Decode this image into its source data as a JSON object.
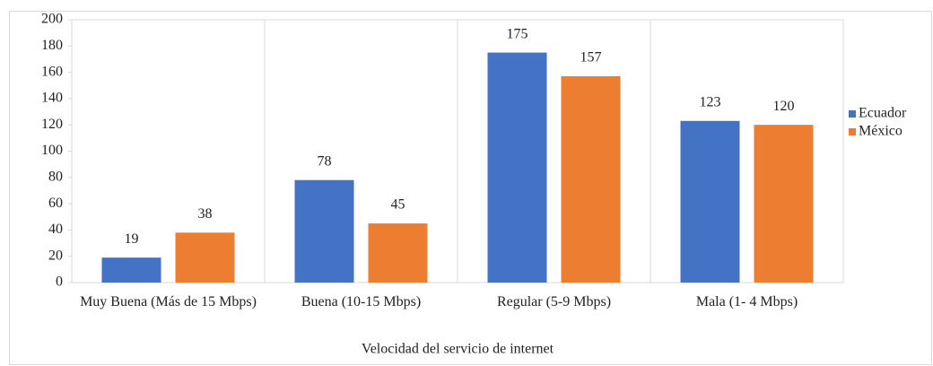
{
  "chart_data": {
    "type": "bar",
    "xlabel": "Velocidad del servicio de internet",
    "categories": [
      "Muy Buena (Más de 15 Mbps)",
      "Buena (10-15 Mbps)",
      "Regular (5-9 Mbps)",
      "Mala (1- 4 Mbps)"
    ],
    "series": [
      {
        "name": "Ecuador",
        "color": "#4472c4",
        "values": [
          19,
          78,
          175,
          123
        ]
      },
      {
        "name": "México",
        "color": "#ed7d31",
        "values": [
          38,
          45,
          157,
          120
        ]
      }
    ],
    "ylim": [
      0,
      200
    ],
    "yticks": [
      0,
      20,
      40,
      60,
      80,
      100,
      120,
      140,
      160,
      180,
      200
    ],
    "data_labels": true,
    "legend": "right"
  }
}
